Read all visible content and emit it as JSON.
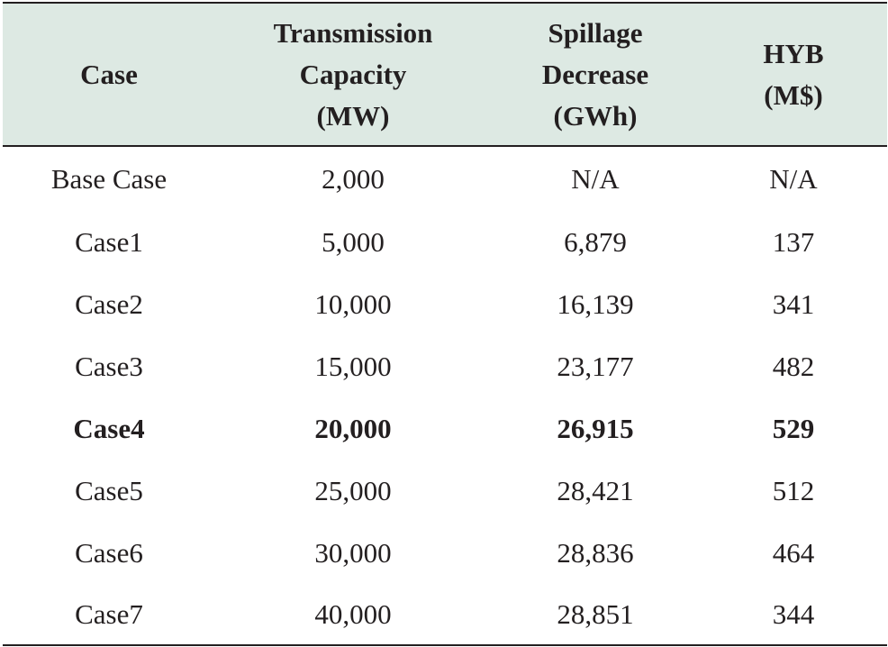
{
  "table": {
    "headers": [
      [
        "Case"
      ],
      [
        "Transmission",
        "Capacity",
        "(MW)"
      ],
      [
        "Spillage",
        "Decrease",
        "(GWh)"
      ],
      [
        "HYB",
        "(M$)"
      ]
    ],
    "rows": [
      {
        "case": "Base Case",
        "capacity": "2,000",
        "spillage": "N/A",
        "hyb": "N/A",
        "bold": false
      },
      {
        "case": "Case1",
        "capacity": "5,000",
        "spillage": "6,879",
        "hyb": "137",
        "bold": false
      },
      {
        "case": "Case2",
        "capacity": "10,000",
        "spillage": "16,139",
        "hyb": "341",
        "bold": false
      },
      {
        "case": "Case3",
        "capacity": "15,000",
        "spillage": "23,177",
        "hyb": "482",
        "bold": false
      },
      {
        "case": "Case4",
        "capacity": "20,000",
        "spillage": "26,915",
        "hyb": "529",
        "bold": true
      },
      {
        "case": "Case5",
        "capacity": "25,000",
        "spillage": "28,421",
        "hyb": "512",
        "bold": false
      },
      {
        "case": "Case6",
        "capacity": "30,000",
        "spillage": "28,836",
        "hyb": "464",
        "bold": false
      },
      {
        "case": "Case7",
        "capacity": "40,000",
        "spillage": "28,851",
        "hyb": "344",
        "bold": false
      }
    ],
    "header_bg": "#dde9e3",
    "text_color": "#231f20"
  }
}
